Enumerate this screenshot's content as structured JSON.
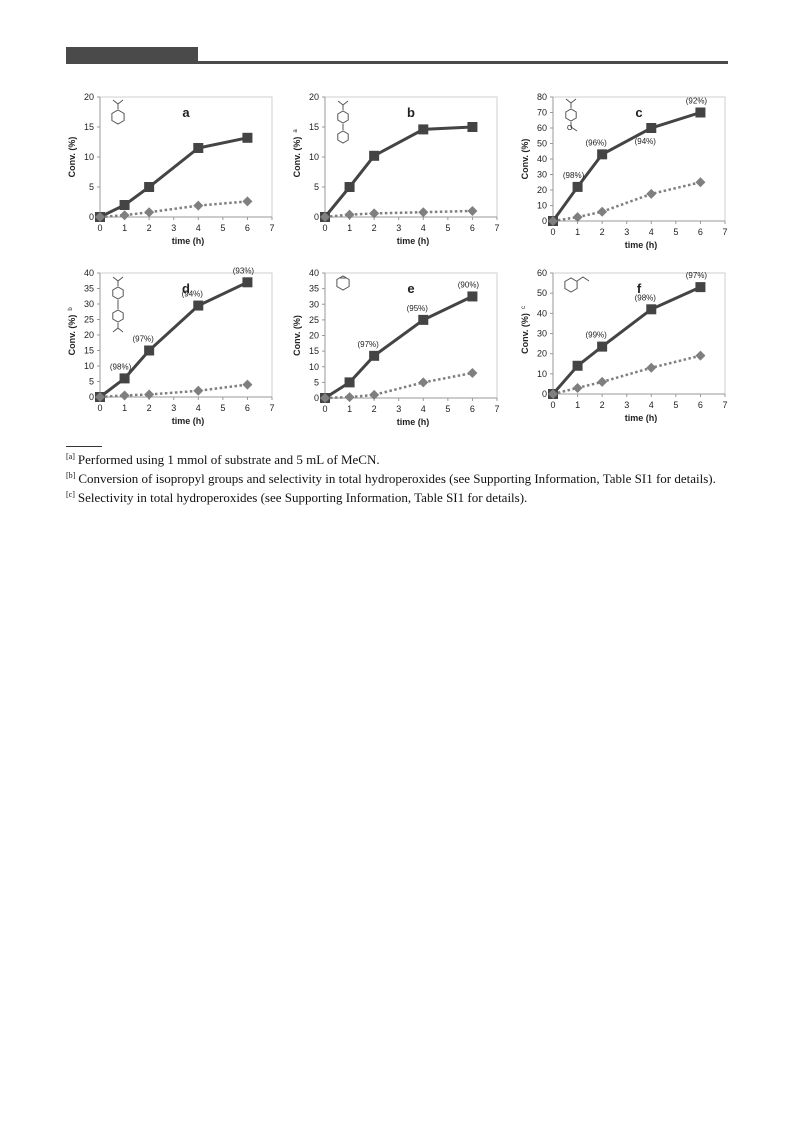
{
  "chart_data": [
    {
      "type": "line",
      "panel_label": "a",
      "xlabel": "time (h)",
      "ylabel": "Conv. (%)",
      "ylabel_mark": "",
      "xlim": [
        0,
        7
      ],
      "ylim": [
        0,
        20
      ],
      "xticks": [
        0,
        1,
        2,
        3,
        4,
        5,
        6,
        7
      ],
      "yticks": [
        0,
        5,
        10,
        15,
        20
      ],
      "structure": "cumene",
      "series": [
        {
          "marker": "square",
          "style": "solid",
          "x": [
            0,
            1,
            2,
            4,
            6
          ],
          "y": [
            0,
            2,
            5,
            11.5,
            13.2
          ]
        },
        {
          "marker": "diamond",
          "style": "dotted",
          "x": [
            0,
            1,
            2,
            4,
            6
          ],
          "y": [
            0,
            0.3,
            0.8,
            1.9,
            2.6
          ]
        }
      ],
      "annotations": []
    },
    {
      "type": "line",
      "panel_label": "b",
      "xlabel": "time (h)",
      "ylabel": "Conv. (%)",
      "ylabel_mark": "a",
      "xlim": [
        0,
        7
      ],
      "ylim": [
        0,
        20
      ],
      "xticks": [
        0,
        1,
        2,
        3,
        4,
        5,
        6,
        7
      ],
      "yticks": [
        0,
        5,
        10,
        15,
        20
      ],
      "structure": "biphenyl",
      "series": [
        {
          "marker": "square",
          "style": "solid",
          "x": [
            0,
            1,
            2,
            4,
            6
          ],
          "y": [
            0,
            5,
            10.2,
            14.6,
            15
          ]
        },
        {
          "marker": "diamond",
          "style": "dotted",
          "x": [
            0,
            1,
            2,
            4,
            6
          ],
          "y": [
            0,
            0.4,
            0.6,
            0.8,
            1
          ]
        }
      ],
      "annotations": []
    },
    {
      "type": "line",
      "panel_label": "c",
      "xlabel": "time (h)",
      "ylabel": "Conv. (%)",
      "ylabel_mark": "",
      "xlim": [
        0,
        7
      ],
      "ylim": [
        0,
        80
      ],
      "xticks": [
        0,
        1,
        2,
        3,
        4,
        5,
        6,
        7
      ],
      "yticks": [
        0,
        10,
        20,
        30,
        40,
        50,
        60,
        70,
        80
      ],
      "structure": "methoxy",
      "series": [
        {
          "marker": "square",
          "style": "solid",
          "x": [
            0,
            1,
            2,
            4,
            6
          ],
          "y": [
            0,
            22,
            43,
            60,
            70
          ]
        },
        {
          "marker": "diamond",
          "style": "dotted",
          "x": [
            0,
            1,
            2,
            4,
            6
          ],
          "y": [
            0,
            2.5,
            6,
            17.5,
            25
          ]
        }
      ],
      "annotations": [
        {
          "text": "(98%)",
          "x": 1,
          "y": 22,
          "pos": "above"
        },
        {
          "text": "(96%)",
          "x": 2,
          "y": 43,
          "pos": "above"
        },
        {
          "text": "(94%)",
          "x": 4,
          "y": 60,
          "pos": "below"
        },
        {
          "text": "(92%)",
          "x": 6,
          "y": 70,
          "pos": "above"
        }
      ]
    },
    {
      "type": "line",
      "panel_label": "d",
      "xlabel": "time (h)",
      "ylabel": "Conv. (%)",
      "ylabel_mark": "b",
      "xlim": [
        0,
        7
      ],
      "ylim": [
        0,
        40
      ],
      "xticks": [
        0,
        1,
        2,
        3,
        4,
        5,
        6,
        7
      ],
      "yticks": [
        0,
        5,
        10,
        15,
        20,
        25,
        30,
        35,
        40
      ],
      "structure": "diisopropylbiphenyl",
      "series": [
        {
          "marker": "square",
          "style": "solid",
          "x": [
            0,
            1,
            2,
            4,
            6
          ],
          "y": [
            0,
            6,
            15,
            29.5,
            37
          ]
        },
        {
          "marker": "diamond",
          "style": "dotted",
          "x": [
            0,
            1,
            2,
            4,
            6
          ],
          "y": [
            0,
            0.5,
            0.8,
            2,
            4
          ]
        }
      ],
      "annotations": [
        {
          "text": "(98%)",
          "x": 1,
          "y": 6,
          "pos": "above"
        },
        {
          "text": "(97%)",
          "x": 2,
          "y": 15,
          "pos": "above"
        },
        {
          "text": "(94%)",
          "x": 4,
          "y": 29.5,
          "pos": "above"
        },
        {
          "text": "(93%)",
          "x": 6,
          "y": 37,
          "pos": "above"
        }
      ]
    },
    {
      "type": "line",
      "panel_label": "e",
      "xlabel": "time (h)",
      "ylabel": "Conv. (%)",
      "ylabel_mark": "",
      "xlim": [
        0,
        7
      ],
      "ylim": [
        0,
        40
      ],
      "xticks": [
        0,
        1,
        2,
        3,
        4,
        5,
        6,
        7
      ],
      "yticks": [
        0,
        5,
        10,
        15,
        20,
        25,
        30,
        35,
        40
      ],
      "structure": "cyclohexene",
      "series": [
        {
          "marker": "square",
          "style": "solid",
          "x": [
            0,
            1,
            2,
            4,
            6
          ],
          "y": [
            0,
            5,
            13.5,
            25,
            32.5
          ]
        },
        {
          "marker": "diamond",
          "style": "dotted",
          "x": [
            0,
            1,
            2,
            4,
            6
          ],
          "y": [
            0,
            0.3,
            1,
            5,
            8
          ]
        }
      ],
      "annotations": [
        {
          "text": "(97%)",
          "x": 2,
          "y": 13.5,
          "pos": "above"
        },
        {
          "text": "(95%)",
          "x": 4,
          "y": 25,
          "pos": "above"
        },
        {
          "text": "(90%)",
          "x": 6,
          "y": 32.5,
          "pos": "above"
        }
      ]
    },
    {
      "type": "line",
      "panel_label": "f",
      "xlabel": "time (h)",
      "ylabel": "Conv. (%)",
      "ylabel_mark": "c",
      "xlim": [
        0,
        7
      ],
      "ylim": [
        0,
        60
      ],
      "xticks": [
        0,
        1,
        2,
        3,
        4,
        5,
        6,
        7
      ],
      "yticks": [
        0,
        10,
        20,
        30,
        40,
        50,
        60
      ],
      "structure": "methylcyclohexene",
      "series": [
        {
          "marker": "square",
          "style": "solid",
          "x": [
            0,
            1,
            2,
            4,
            6
          ],
          "y": [
            0,
            14,
            23.5,
            42,
            53
          ]
        },
        {
          "marker": "diamond",
          "style": "dotted",
          "x": [
            0,
            1,
            2,
            4,
            6
          ],
          "y": [
            0,
            3,
            6,
            13,
            19
          ]
        }
      ],
      "annotations": [
        {
          "text": "(99%)",
          "x": 2,
          "y": 23.5,
          "pos": "above"
        },
        {
          "text": "(98%)",
          "x": 4,
          "y": 42,
          "pos": "above"
        },
        {
          "text": "(97%)",
          "x": 6,
          "y": 53,
          "pos": "above"
        }
      ]
    }
  ],
  "footnotes": [
    {
      "mark": "[a]",
      "text": "Performed using 1 mmol of substrate and 5 mL of MeCN."
    },
    {
      "mark": "[b]",
      "text": "Conversion of isopropyl groups and selectivity in total hydroperoxides (see Supporting Information, Table SI1 for details)."
    },
    {
      "mark": "[c]",
      "text": "Selectivity in total hydroperoxides (see Supporting Information, Table SI1 for details)."
    }
  ],
  "colors": {
    "solid_series": "#444444",
    "dotted_series": "#7f7f7f",
    "axis": "#999999"
  }
}
